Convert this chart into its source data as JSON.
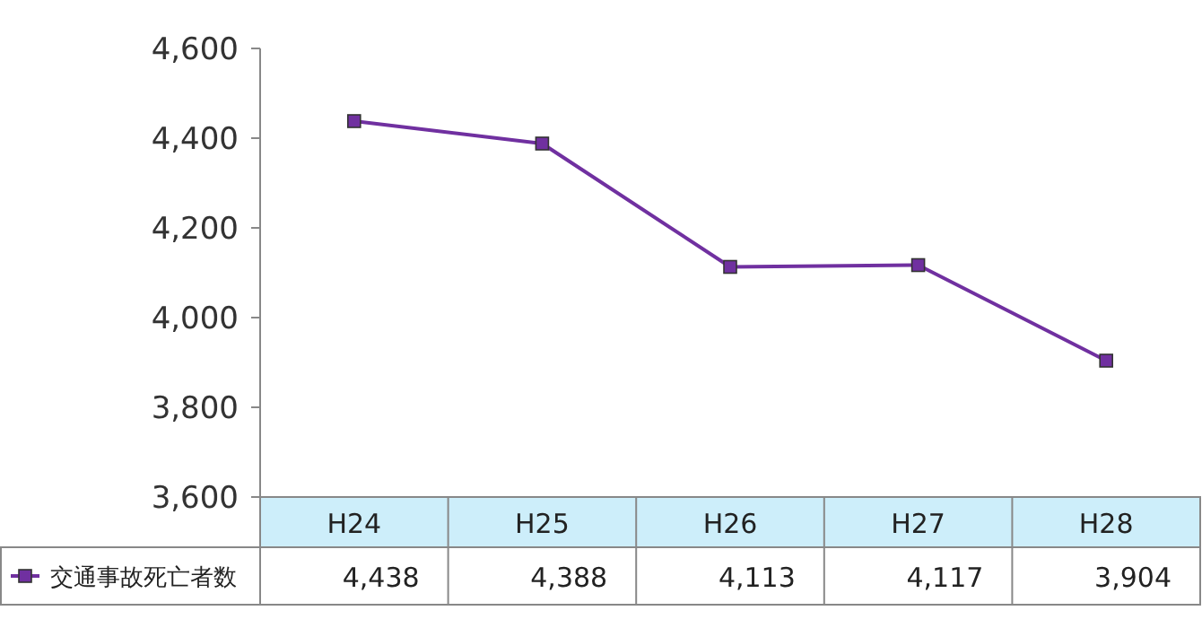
{
  "chart_data": {
    "type": "line",
    "categories": [
      "H24",
      "H25",
      "H26",
      "H27",
      "H28"
    ],
    "series": [
      {
        "name": "交通事故死亡者数",
        "color": "#7030a0",
        "values": [
          4438,
          4388,
          4113,
          4117,
          3904
        ],
        "value_labels": [
          "4,438",
          "4,388",
          "4,113",
          "4,117",
          "3,904"
        ]
      }
    ],
    "ylim": [
      3600,
      4600
    ],
    "yticks": [
      {
        "value": 3600,
        "label": "3,600"
      },
      {
        "value": 3800,
        "label": "3,800"
      },
      {
        "value": 4000,
        "label": "4,000"
      },
      {
        "value": 4200,
        "label": "4,200"
      },
      {
        "value": 4400,
        "label": "4,400"
      },
      {
        "value": 4600,
        "label": "4,600"
      }
    ],
    "marker": "square",
    "legend": "bottom left"
  }
}
